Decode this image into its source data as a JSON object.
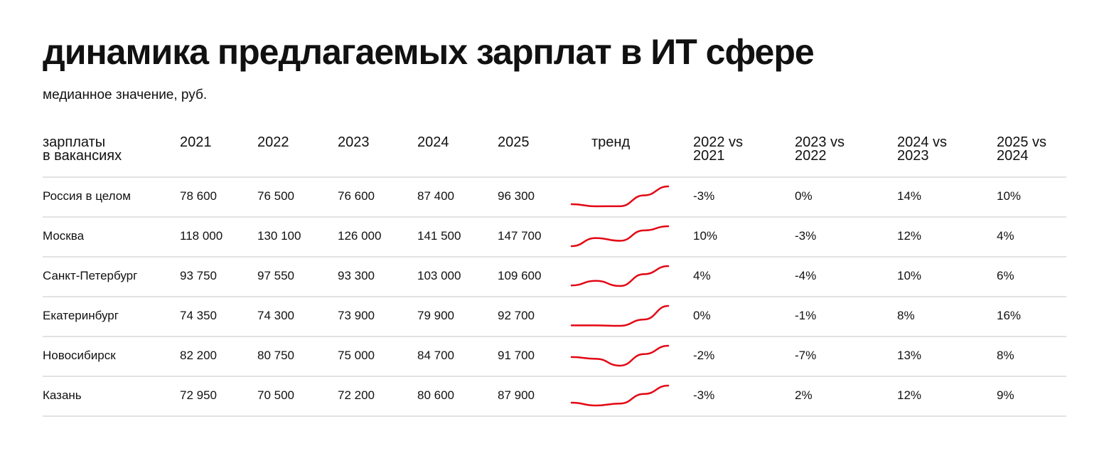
{
  "header": {
    "title": "динамика предлагаемых зарплат в ИТ сфере",
    "subtitle": "медианное значение, руб."
  },
  "table": {
    "columns": [
      "зарплаты\nв вакансиях",
      "2021",
      "2022",
      "2023",
      "2024",
      "2025",
      "тренд",
      "2022 vs\n2021",
      "2023 vs\n2022",
      "2024 vs\n2023",
      "2025 vs\n2024"
    ],
    "rows": [
      {
        "name": "Россия в целом",
        "values": [
          78600,
          76500,
          76600,
          87400,
          96300
        ],
        "value_labels": [
          "78 600",
          "76 500",
          "76 600",
          "87 400",
          "96 300"
        ],
        "changes": [
          "-3%",
          "0%",
          "14%",
          "10%"
        ]
      },
      {
        "name": "Москва",
        "values": [
          118000,
          130100,
          126000,
          141500,
          147700
        ],
        "value_labels": [
          "118 000",
          "130 100",
          "126 000",
          "141 500",
          "147 700"
        ],
        "changes": [
          "10%",
          "-3%",
          "12%",
          "4%"
        ]
      },
      {
        "name": "Санкт-Петербург",
        "values": [
          93750,
          97550,
          93300,
          103000,
          109600
        ],
        "value_labels": [
          "93 750",
          "97 550",
          "93 300",
          "103 000",
          "109 600"
        ],
        "changes": [
          "4%",
          "-4%",
          "10%",
          "6%"
        ]
      },
      {
        "name": "Екатеринбург",
        "values": [
          74350,
          74300,
          73900,
          79900,
          92700
        ],
        "value_labels": [
          "74 350",
          "74 300",
          "73 900",
          "79 900",
          "92 700"
        ],
        "changes": [
          "0%",
          "-1%",
          "8%",
          "16%"
        ]
      },
      {
        "name": "Новосибирск",
        "values": [
          82200,
          80750,
          75000,
          84700,
          91700
        ],
        "value_labels": [
          "82 200",
          "80 750",
          "75 000",
          "84 700",
          "91 700"
        ],
        "changes": [
          "-2%",
          "-7%",
          "13%",
          "8%"
        ]
      },
      {
        "name": "Казань",
        "values": [
          72950,
          70500,
          72200,
          80600,
          87900
        ],
        "value_labels": [
          "72 950",
          "70 500",
          "72 200",
          "80 600",
          "87 900"
        ],
        "changes": [
          "-3%",
          "2%",
          "12%",
          "9%"
        ]
      }
    ],
    "trend_color": "#e30613"
  }
}
